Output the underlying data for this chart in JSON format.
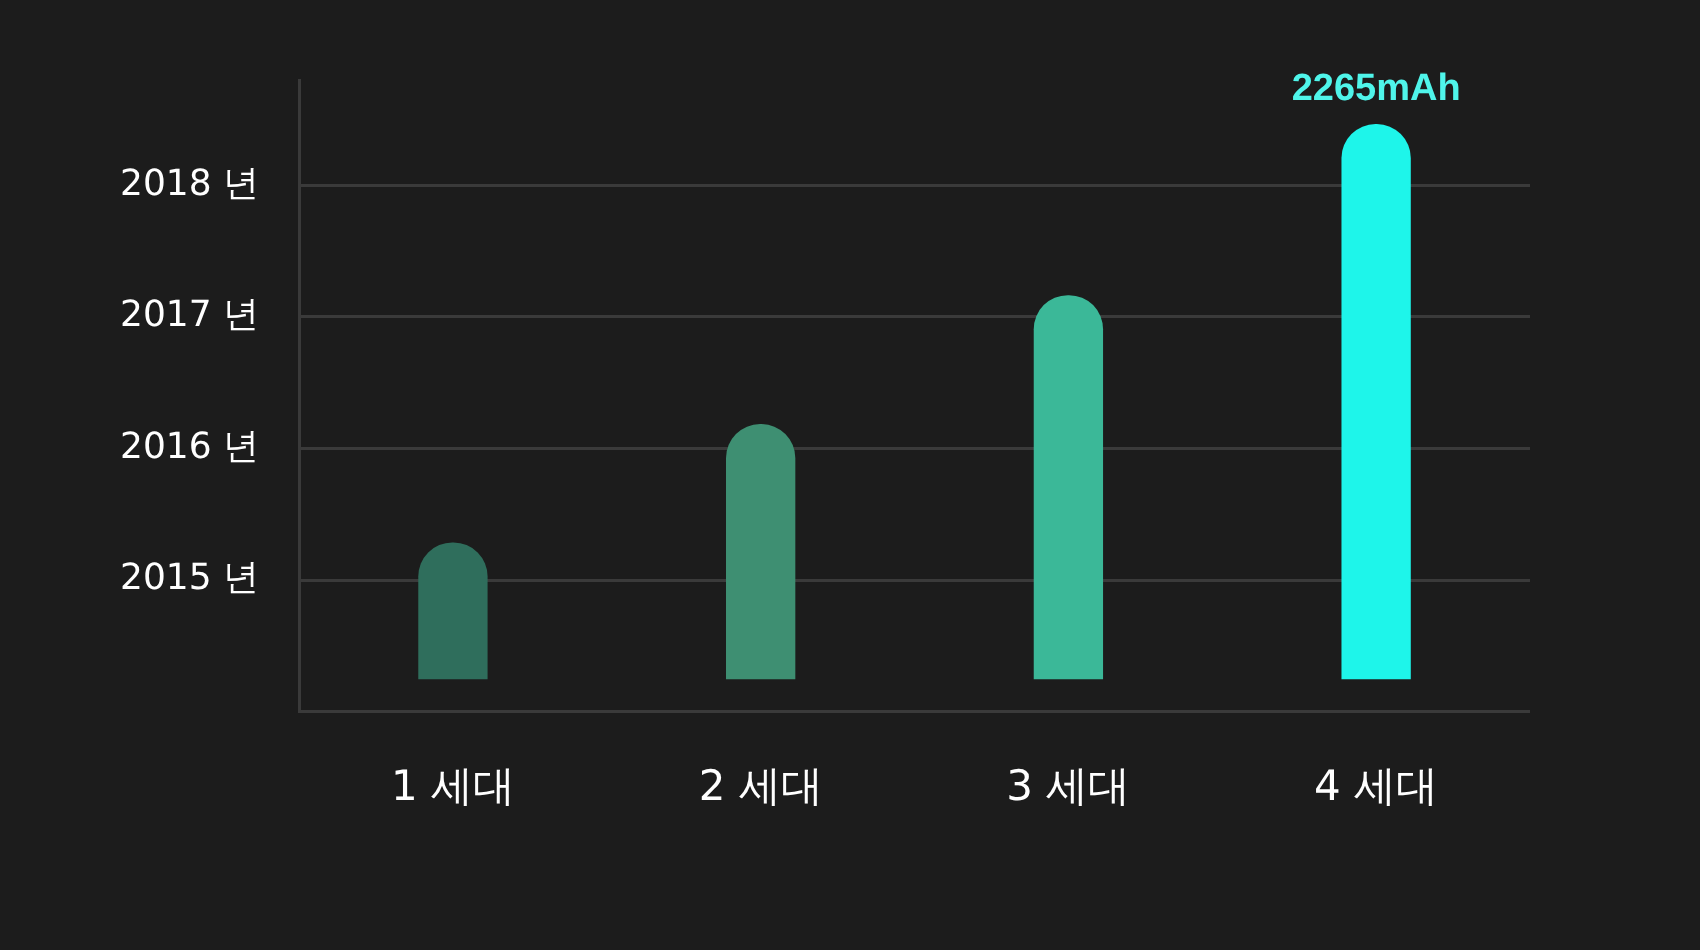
{
  "chart_data": {
    "type": "bar",
    "categories": [
      "1 세대",
      "2 세대",
      "3 세대",
      "4 세대"
    ],
    "base": [
      2014.25,
      2014.25,
      2014.25,
      2014.25
    ],
    "values": [
      1.03,
      1.93,
      2.91,
      4.21
    ],
    "colors": [
      "#2f6e5c",
      "#3e8f72",
      "#3bb898",
      "#1ef5ea"
    ],
    "ylim": [
      2014,
      2018.8
    ],
    "yticks": [
      {
        "value": 2014,
        "label": null
      },
      {
        "value": 2015,
        "label": "2015 년"
      },
      {
        "value": 2016,
        "label": "2016 년"
      },
      {
        "value": 2017,
        "label": "2017 년"
      },
      {
        "value": 2018,
        "label": "2018 년"
      }
    ],
    "grid": "y",
    "annotations": [
      {
        "text": "2265mAh",
        "x": "4 세대",
        "y": 2018.46
      }
    ]
  }
}
